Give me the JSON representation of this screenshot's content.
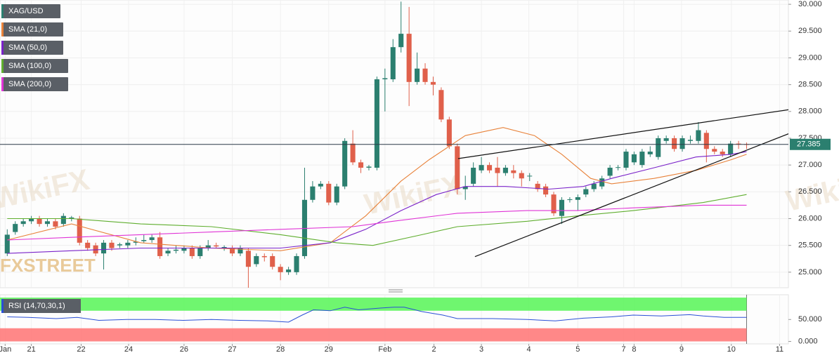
{
  "chart_data": [
    {
      "type": "candlestick",
      "watermarks": [
        "FXSTREET",
        "WikiFX"
      ],
      "candles": {
        "name": "XAG/USD",
        "color": "#2b7f6f",
        "color_up": "#2b7f6f",
        "color_down": "#e0604b",
        "open": [
          25.35,
          25.75,
          25.9,
          25.95,
          26.0,
          25.9,
          25.95,
          25.9,
          26.0,
          26.0,
          25.55,
          25.5,
          25.35,
          25.55,
          25.5,
          25.5,
          25.55,
          25.58,
          25.6,
          25.65,
          25.35,
          25.4,
          25.4,
          25.45,
          25.3,
          25.45,
          25.5,
          25.45,
          25.45,
          25.35,
          25.4,
          25.15,
          25.3,
          25.3,
          25.1,
          25.0,
          25.0,
          25.3,
          26.35,
          26.6,
          26.65,
          26.3,
          26.6,
          27.4,
          27.05,
          26.95,
          26.95,
          28.6,
          28.6,
          29.2,
          29.45,
          28.55,
          28.8,
          28.55,
          28.4,
          27.85,
          27.35,
          26.55,
          26.65,
          26.9,
          27.0,
          26.95,
          26.85,
          26.9,
          26.85,
          26.8,
          26.65,
          26.6,
          26.45,
          26.05,
          26.35,
          26.35,
          26.45,
          26.55,
          26.6,
          26.8,
          26.95,
          26.95,
          27.05,
          27.0,
          27.2,
          27.15,
          27.45,
          27.5,
          27.3,
          27.45,
          27.45,
          27.6,
          27.3,
          27.25,
          27.2,
          27.4,
          27.39
        ],
        "high": [
          25.8,
          25.95,
          26.0,
          26.05,
          26.05,
          26.0,
          26.0,
          26.1,
          26.05,
          26.05,
          25.6,
          25.55,
          25.6,
          25.6,
          25.55,
          25.6,
          25.65,
          25.7,
          25.7,
          25.75,
          25.45,
          25.5,
          25.5,
          25.5,
          25.5,
          25.6,
          25.55,
          25.5,
          25.5,
          25.5,
          25.45,
          25.35,
          25.35,
          25.35,
          25.15,
          25.1,
          25.35,
          26.95,
          26.7,
          26.7,
          26.7,
          26.65,
          27.5,
          27.65,
          27.1,
          27.0,
          28.65,
          28.8,
          29.35,
          30.05,
          29.95,
          29.1,
          28.9,
          28.65,
          28.45,
          27.9,
          27.4,
          26.8,
          27.05,
          27.15,
          27.05,
          27.15,
          27.0,
          27.0,
          26.9,
          26.85,
          26.7,
          26.65,
          26.5,
          26.4,
          26.4,
          26.45,
          26.6,
          26.7,
          26.8,
          27.0,
          27.0,
          27.3,
          27.25,
          27.3,
          27.35,
          27.55,
          27.55,
          27.55,
          27.55,
          27.55,
          27.8,
          27.65,
          27.35,
          27.3,
          27.45,
          27.45,
          27.42
        ],
        "low": [
          25.3,
          25.7,
          25.85,
          25.9,
          25.85,
          25.85,
          25.8,
          25.85,
          25.95,
          25.5,
          25.4,
          25.3,
          25.05,
          25.4,
          25.45,
          25.45,
          25.5,
          25.55,
          25.55,
          25.25,
          25.3,
          25.35,
          25.35,
          25.25,
          25.25,
          25.4,
          25.45,
          25.4,
          25.3,
          25.3,
          24.7,
          25.1,
          25.2,
          25.05,
          24.85,
          24.95,
          24.95,
          25.25,
          26.3,
          26.55,
          26.25,
          26.25,
          26.55,
          27.0,
          26.85,
          26.9,
          26.9,
          28.0,
          28.55,
          29.1,
          28.1,
          28.5,
          28.5,
          28.3,
          27.8,
          27.3,
          26.45,
          26.35,
          26.6,
          26.85,
          26.85,
          26.6,
          26.8,
          26.75,
          26.6,
          26.7,
          26.5,
          26.4,
          26.05,
          25.9,
          26.3,
          26.15,
          26.4,
          26.5,
          26.55,
          26.75,
          26.9,
          26.9,
          27.0,
          26.95,
          27.15,
          27.1,
          27.4,
          27.25,
          27.25,
          27.4,
          27.4,
          27.05,
          27.2,
          27.15,
          27.15,
          27.3,
          27.3
        ],
        "close": [
          25.7,
          25.9,
          25.95,
          26.0,
          25.9,
          25.95,
          25.85,
          26.05,
          26.02,
          25.55,
          25.45,
          25.35,
          25.55,
          25.45,
          25.52,
          25.55,
          25.57,
          25.6,
          25.65,
          25.3,
          25.4,
          25.42,
          25.45,
          25.3,
          25.45,
          25.5,
          25.48,
          25.47,
          25.35,
          25.45,
          25.1,
          25.3,
          25.28,
          25.1,
          25.0,
          25.05,
          25.3,
          26.35,
          26.6,
          26.65,
          26.3,
          26.6,
          27.45,
          27.05,
          26.95,
          26.97,
          28.6,
          28.62,
          29.2,
          29.45,
          28.55,
          28.8,
          28.55,
          28.5,
          27.85,
          27.35,
          26.55,
          26.6,
          26.95,
          27.0,
          26.9,
          26.85,
          26.95,
          26.85,
          26.75,
          26.8,
          26.55,
          26.45,
          26.1,
          26.35,
          26.36,
          26.4,
          26.55,
          26.65,
          26.75,
          26.95,
          26.96,
          27.25,
          27.2,
          27.25,
          27.25,
          27.5,
          27.5,
          27.3,
          27.5,
          27.47,
          27.65,
          27.3,
          27.25,
          27.2,
          27.4,
          27.39,
          27.385
        ]
      },
      "series": [
        {
          "name": "SMA (21,0)",
          "color": "#e8823a",
          "x": [
            0,
            8,
            16.6,
            25.4,
            34,
            40.2,
            44.6,
            49,
            52.5,
            57,
            61.7,
            65.6,
            69,
            72.6,
            75.2,
            80.5,
            85.7,
            90.1,
            92
          ],
          "values": [
            25.6,
            25.9,
            25.55,
            25.45,
            25.4,
            25.55,
            26.05,
            26.7,
            27.1,
            27.55,
            27.7,
            27.55,
            27.2,
            26.75,
            26.65,
            26.75,
            26.9,
            27.1,
            27.2
          ]
        },
        {
          "name": "SMA (50,0)",
          "color": "#7a22c9",
          "x": [
            0,
            8,
            16.6,
            25.4,
            34,
            40.2,
            44.6,
            49,
            53.4,
            57,
            62,
            67.4,
            71.7,
            75.2,
            80.5,
            85.7,
            90.1,
            92
          ],
          "values": [
            25.35,
            25.4,
            25.45,
            25.45,
            25.45,
            25.55,
            25.8,
            26.15,
            26.45,
            26.6,
            26.6,
            26.55,
            26.6,
            26.75,
            26.95,
            27.15,
            27.2,
            27.25
          ]
        },
        {
          "name": "SMA (100,0)",
          "color": "#5fae2e",
          "x": [
            0,
            8,
            16.6,
            25.4,
            34,
            41,
            45.5,
            51.6,
            56,
            64.7,
            70.9,
            77.9,
            86.6,
            92
          ],
          "values": [
            26.0,
            26.0,
            25.9,
            25.85,
            25.7,
            25.55,
            25.5,
            25.7,
            25.85,
            25.95,
            26.05,
            26.15,
            26.3,
            26.45
          ]
        },
        {
          "name": "SMA (200,0)",
          "color": "#e033d6",
          "x": [
            0,
            8,
            16.6,
            25.4,
            34,
            43,
            48,
            56,
            64.7,
            70.9,
            77.9,
            86.6,
            92
          ],
          "values": [
            25.6,
            25.65,
            25.7,
            25.75,
            25.8,
            25.85,
            25.95,
            26.1,
            26.15,
            26.15,
            26.2,
            26.25,
            26.25
          ]
        }
      ],
      "trendlines": [
        {
          "color": "#111111",
          "x": [
            56.1,
            98
          ],
          "values": [
            27.12,
            28.05
          ]
        },
        {
          "color": "#111111",
          "x": [
            58.2,
            98
          ],
          "values": [
            25.29,
            27.63
          ]
        }
      ],
      "last_price": {
        "value": 27.385,
        "label": "27.385"
      },
      "xlim": [
        -0.9,
        97.2
      ],
      "ylim": [
        24.71,
        30.08
      ],
      "grid": true,
      "yticks": [
        {
          "value": 25,
          "label": "25.000"
        },
        {
          "value": 25.5,
          "label": "25.500"
        },
        {
          "value": 26,
          "label": "26.000"
        },
        {
          "value": 26.5,
          "label": "26.500"
        },
        {
          "value": 27,
          "label": "27.000"
        },
        {
          "value": 27.5,
          "label": "27.500"
        },
        {
          "value": 28,
          "label": "28.000"
        },
        {
          "value": 28.5,
          "label": "28.500"
        },
        {
          "value": 29,
          "label": "29.000"
        },
        {
          "value": 29.5,
          "label": "29.500"
        },
        {
          "value": 30,
          "label": "30.000"
        }
      ],
      "xticks": [
        {
          "value": -0.26,
          "label": "Jan"
        },
        {
          "value": 3.0,
          "label": "21"
        },
        {
          "value": 9.2,
          "label": "22"
        },
        {
          "value": 15.1,
          "label": "24"
        },
        {
          "value": 22,
          "label": "26"
        },
        {
          "value": 28,
          "label": "27"
        },
        {
          "value": 34,
          "label": "28"
        },
        {
          "value": 40,
          "label": "29"
        },
        {
          "value": 47,
          "label": "Feb"
        },
        {
          "value": 53.1,
          "label": "2"
        },
        {
          "value": 59,
          "label": "3"
        },
        {
          "value": 64.9,
          "label": "4"
        },
        {
          "value": 71,
          "label": "5"
        },
        {
          "value": 76.7,
          "label": "7"
        },
        {
          "value": 78,
          "label": "8"
        },
        {
          "value": 83.9,
          "label": "9"
        },
        {
          "value": 90.1,
          "label": "10"
        },
        {
          "value": 96.1,
          "label": "11"
        }
      ]
    },
    {
      "type": "line",
      "name": "RSI (14,70,30,1)",
      "color": "#2a4fd6",
      "x": [
        0,
        2.6,
        6.1,
        8.7,
        11.4,
        14.9,
        18.4,
        21.9,
        25.4,
        28.9,
        32.4,
        35,
        36.7,
        38.1,
        40.2,
        42,
        43.7,
        46.4,
        48.1,
        49.4,
        51.6,
        54.2,
        56,
        60.4,
        64.7,
        68.2,
        71.7,
        75.2,
        77.9,
        81.4,
        84.9,
        86.6,
        89.2,
        92
      ],
      "values": [
        56,
        55,
        52,
        55,
        48,
        50,
        50,
        48,
        50,
        48,
        47,
        44,
        60,
        72,
        70,
        78,
        72,
        76,
        78,
        78,
        68,
        60,
        52,
        52,
        50,
        47,
        53,
        56,
        60,
        58,
        61,
        58,
        55,
        55
      ],
      "bands": [
        {
          "range": [
            70,
            100
          ],
          "color": "#5ff55f"
        },
        {
          "range": [
            0,
            30
          ],
          "color": "#ff7b7b"
        }
      ],
      "band_end": 92,
      "xlim": [
        -0.9,
        97.2
      ],
      "ylim": [
        -5.6,
        106.5
      ],
      "yticks": [
        {
          "value": 0,
          "label": "0.000"
        },
        {
          "value": 50,
          "label": "50.000"
        }
      ]
    }
  ]
}
